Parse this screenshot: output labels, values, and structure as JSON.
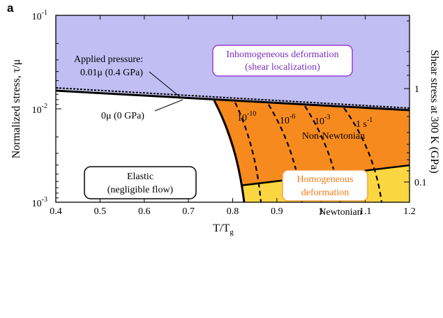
{
  "panel_label": "a",
  "axes": {
    "xlabel_main": "T/T",
    "xlabel_sub": "g",
    "ylabel": "Normalized stress, τ/μ",
    "y2label": "Shear stress at 300 K  (GPa)",
    "x_ticks": [
      "0.4",
      "0.5",
      "0.6",
      "0.7",
      "0.8",
      "0.9",
      "1",
      "1.1",
      "1.2"
    ],
    "y_ticks": [
      {
        "base": "10",
        "exp": "-1"
      },
      {
        "base": "10",
        "exp": "-2"
      },
      {
        "base": "10",
        "exp": "-3"
      }
    ],
    "y2_ticks": [
      "1",
      "0.1"
    ]
  },
  "regions": {
    "inhomogeneous": {
      "line1": "Inhomogeneous deformation",
      "line2": "(shear localization)",
      "color": "#c0bef3"
    },
    "elastic": {
      "line1": "Elastic",
      "line2": "(negligible flow)",
      "color": "#ffffff"
    },
    "homogeneous": {
      "line1": "Homogeneous",
      "line2": "deformation"
    },
    "non_newtonian": {
      "label": "Non-Newtonian",
      "color": "#f78a1e"
    },
    "newtonian": {
      "label": "Newtonian",
      "color": "#fad640"
    }
  },
  "annotations": {
    "applied_pressure_line1": "Applied pressure:",
    "applied_pressure_line2": "0.01μ (0.4 GPa)",
    "zero_pressure": "0μ (0 GPa)"
  },
  "strain_rates": [
    {
      "base": "10",
      "exp": "-10"
    },
    {
      "base": "10",
      "exp": "-6"
    },
    {
      "base": "10",
      "exp": "-3"
    },
    {
      "base": "1 s",
      "exp": "-1"
    }
  ],
  "colors": {
    "inhomogeneous_border": "#9b3fd4",
    "homogeneous_text": "#f07a12",
    "homogeneous_border": "#f7a04a"
  }
}
